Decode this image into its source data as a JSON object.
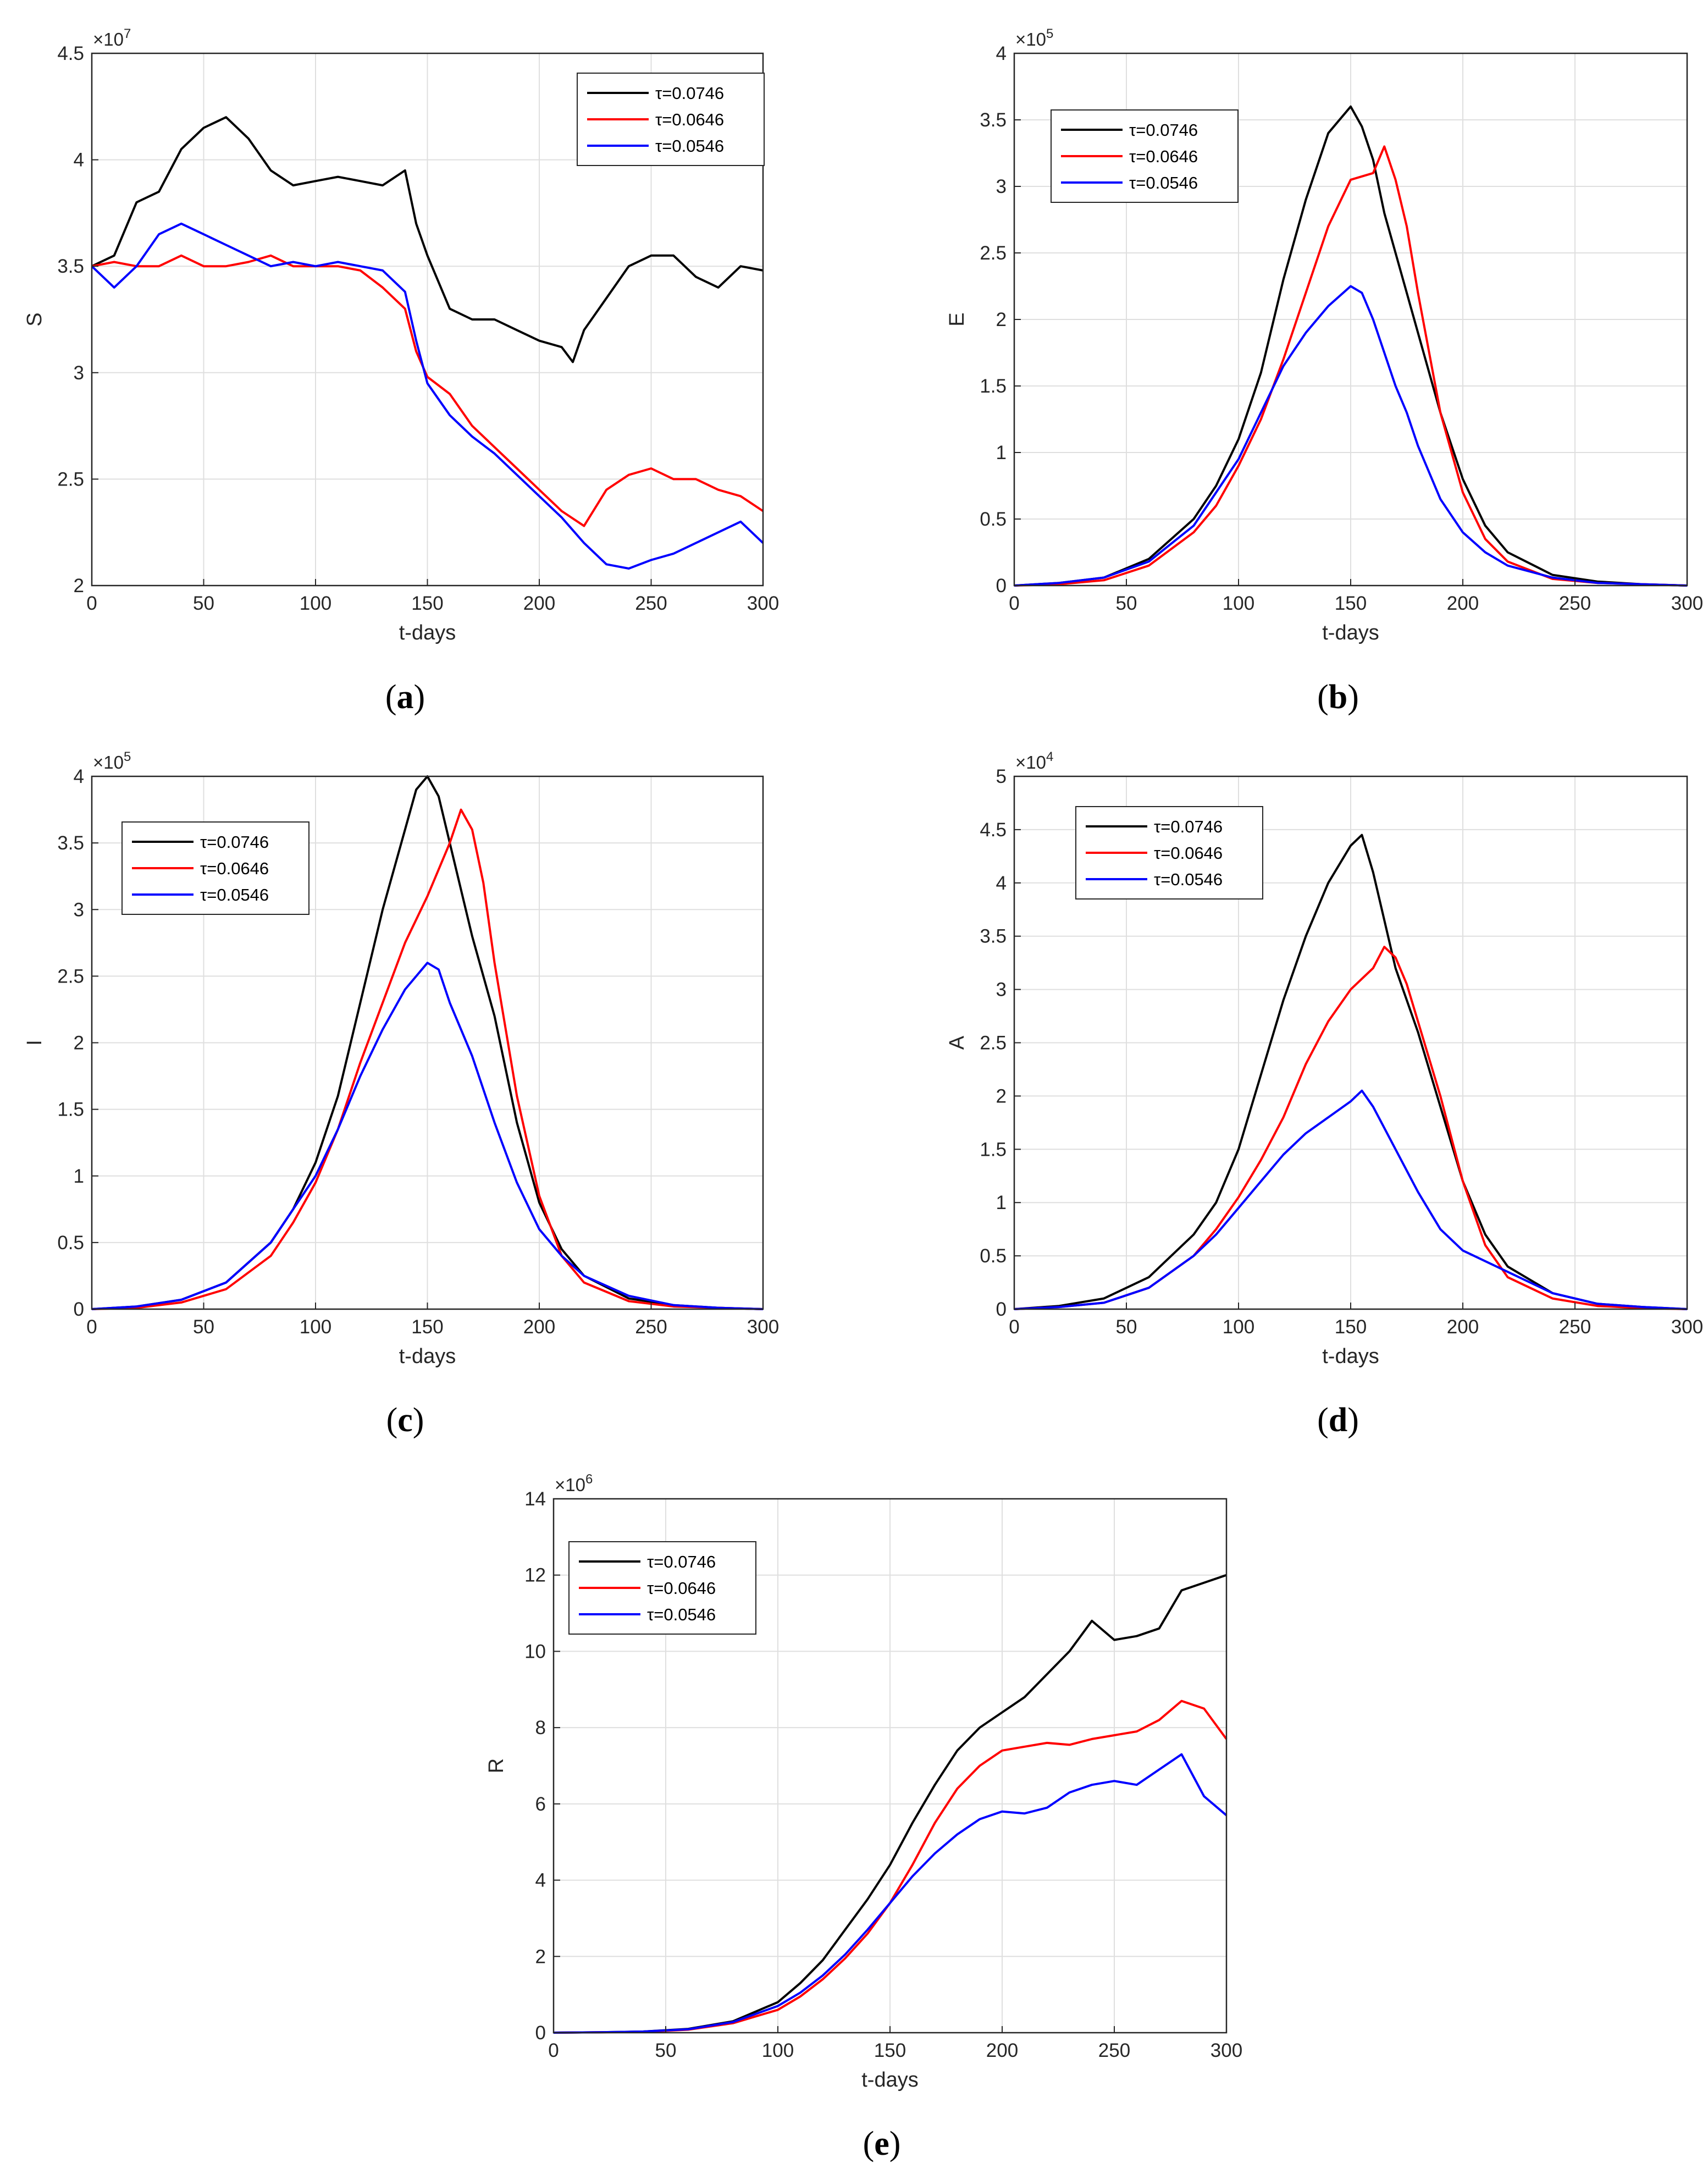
{
  "chart_data": [
    {
      "type": "line",
      "panel_label": "(a)",
      "panel_letter": "a",
      "ylabel": "S",
      "xlabel": "t-days",
      "exponent_base": "×10",
      "exponent_power": "7",
      "xlim": [
        0,
        300
      ],
      "xticks": [
        0,
        50,
        100,
        150,
        200,
        250,
        300
      ],
      "ylim": [
        2,
        4.5
      ],
      "yticks": [
        2,
        2.5,
        3,
        3.5,
        4,
        4.5
      ],
      "legend_position": "top-right",
      "grid": true,
      "series": [
        {
          "name": "τ=0.0746",
          "color": "#000000",
          "x": [
            0,
            10,
            20,
            30,
            40,
            50,
            60,
            70,
            80,
            90,
            100,
            110,
            120,
            130,
            140,
            145,
            150,
            160,
            170,
            180,
            190,
            200,
            210,
            215,
            220,
            230,
            240,
            250,
            260,
            270,
            280,
            290,
            300
          ],
          "values": [
            3.5,
            3.55,
            3.8,
            3.85,
            4.05,
            4.15,
            4.2,
            4.1,
            3.95,
            3.88,
            3.9,
            3.92,
            3.9,
            3.88,
            3.95,
            3.7,
            3.55,
            3.3,
            3.25,
            3.25,
            3.2,
            3.15,
            3.12,
            3.05,
            3.2,
            3.35,
            3.5,
            3.55,
            3.55,
            3.45,
            3.4,
            3.5,
            3.48
          ]
        },
        {
          "name": "τ=0.0646",
          "color": "#ff0000",
          "x": [
            0,
            10,
            20,
            30,
            40,
            50,
            60,
            70,
            80,
            90,
            100,
            110,
            120,
            130,
            140,
            145,
            150,
            160,
            170,
            180,
            190,
            200,
            210,
            220,
            230,
            240,
            250,
            260,
            270,
            280,
            290,
            300
          ],
          "values": [
            3.5,
            3.52,
            3.5,
            3.5,
            3.55,
            3.5,
            3.5,
            3.52,
            3.55,
            3.5,
            3.5,
            3.5,
            3.48,
            3.4,
            3.3,
            3.1,
            2.98,
            2.9,
            2.75,
            2.65,
            2.55,
            2.45,
            2.35,
            2.28,
            2.45,
            2.52,
            2.55,
            2.5,
            2.5,
            2.45,
            2.42,
            2.35
          ]
        },
        {
          "name": "τ=0.0546",
          "color": "#0000ff",
          "x": [
            0,
            10,
            20,
            30,
            40,
            50,
            60,
            70,
            80,
            90,
            100,
            110,
            120,
            130,
            140,
            145,
            150,
            160,
            170,
            180,
            190,
            200,
            210,
            220,
            230,
            240,
            250,
            260,
            270,
            280,
            290,
            300
          ],
          "values": [
            3.5,
            3.4,
            3.5,
            3.65,
            3.7,
            3.65,
            3.6,
            3.55,
            3.5,
            3.52,
            3.5,
            3.52,
            3.5,
            3.48,
            3.38,
            3.15,
            2.95,
            2.8,
            2.7,
            2.62,
            2.52,
            2.42,
            2.32,
            2.2,
            2.1,
            2.08,
            2.12,
            2.15,
            2.2,
            2.25,
            2.3,
            2.2
          ]
        }
      ]
    },
    {
      "type": "line",
      "panel_label": "(b)",
      "panel_letter": "b",
      "ylabel": "E",
      "xlabel": "t-days",
      "exponent_base": "×10",
      "exponent_power": "5",
      "xlim": [
        0,
        300
      ],
      "xticks": [
        0,
        50,
        100,
        150,
        200,
        250,
        300
      ],
      "ylim": [
        0,
        4
      ],
      "yticks": [
        0,
        0.5,
        1,
        1.5,
        2,
        2.5,
        3,
        3.5,
        4
      ],
      "legend_position": "top-left",
      "grid": true,
      "series": [
        {
          "name": "τ=0.0746",
          "color": "#000000",
          "x": [
            0,
            20,
            40,
            60,
            80,
            90,
            100,
            110,
            120,
            130,
            140,
            150,
            155,
            160,
            165,
            170,
            175,
            180,
            190,
            200,
            210,
            220,
            240,
            260,
            280,
            300
          ],
          "values": [
            0,
            0.02,
            0.06,
            0.2,
            0.5,
            0.75,
            1.1,
            1.6,
            2.3,
            2.9,
            3.4,
            3.6,
            3.45,
            3.2,
            2.8,
            2.5,
            2.2,
            1.9,
            1.3,
            0.8,
            0.45,
            0.25,
            0.08,
            0.03,
            0.01,
            0
          ]
        },
        {
          "name": "τ=0.0646",
          "color": "#ff0000",
          "x": [
            0,
            20,
            40,
            60,
            80,
            90,
            100,
            110,
            120,
            130,
            140,
            150,
            160,
            165,
            170,
            175,
            180,
            190,
            200,
            210,
            220,
            240,
            260,
            280,
            300
          ],
          "values": [
            0,
            0.01,
            0.04,
            0.15,
            0.4,
            0.6,
            0.9,
            1.25,
            1.7,
            2.2,
            2.7,
            3.05,
            3.1,
            3.3,
            3.05,
            2.7,
            2.2,
            1.3,
            0.7,
            0.35,
            0.18,
            0.05,
            0.02,
            0.01,
            0
          ]
        },
        {
          "name": "τ=0.0546",
          "color": "#0000ff",
          "x": [
            0,
            20,
            40,
            60,
            80,
            90,
            100,
            110,
            120,
            130,
            140,
            150,
            155,
            160,
            165,
            170,
            175,
            180,
            190,
            200,
            210,
            220,
            240,
            260,
            280,
            300
          ],
          "values": [
            0,
            0.02,
            0.06,
            0.18,
            0.45,
            0.7,
            0.95,
            1.3,
            1.65,
            1.9,
            2.1,
            2.25,
            2.2,
            2.0,
            1.75,
            1.5,
            1.3,
            1.05,
            0.65,
            0.4,
            0.25,
            0.15,
            0.06,
            0.02,
            0.01,
            0
          ]
        }
      ]
    },
    {
      "type": "line",
      "panel_label": "(c)",
      "panel_letter": "c",
      "ylabel": "I",
      "xlabel": "t-days",
      "exponent_base": "×10",
      "exponent_power": "5",
      "xlim": [
        0,
        300
      ],
      "xticks": [
        0,
        50,
        100,
        150,
        200,
        250,
        300
      ],
      "ylim": [
        0,
        4
      ],
      "yticks": [
        0,
        0.5,
        1,
        1.5,
        2,
        2.5,
        3,
        3.5,
        4
      ],
      "legend_position": "top-left",
      "grid": true,
      "series": [
        {
          "name": "τ=0.0746",
          "color": "#000000",
          "x": [
            0,
            20,
            40,
            60,
            80,
            90,
            100,
            110,
            120,
            130,
            140,
            145,
            150,
            155,
            160,
            170,
            180,
            190,
            200,
            210,
            220,
            240,
            260,
            280,
            300
          ],
          "values": [
            0,
            0.02,
            0.07,
            0.2,
            0.5,
            0.75,
            1.1,
            1.6,
            2.3,
            3.0,
            3.6,
            3.9,
            4.0,
            3.85,
            3.5,
            2.8,
            2.2,
            1.4,
            0.8,
            0.45,
            0.25,
            0.08,
            0.03,
            0.01,
            0
          ]
        },
        {
          "name": "τ=0.0646",
          "color": "#ff0000",
          "x": [
            0,
            20,
            40,
            60,
            80,
            90,
            100,
            110,
            120,
            130,
            140,
            150,
            160,
            165,
            170,
            175,
            180,
            190,
            200,
            210,
            220,
            240,
            260,
            280,
            300
          ],
          "values": [
            0,
            0.01,
            0.05,
            0.15,
            0.4,
            0.65,
            0.95,
            1.35,
            1.85,
            2.3,
            2.75,
            3.1,
            3.5,
            3.75,
            3.6,
            3.2,
            2.6,
            1.6,
            0.85,
            0.4,
            0.2,
            0.06,
            0.02,
            0.01,
            0
          ]
        },
        {
          "name": "τ=0.0546",
          "color": "#0000ff",
          "x": [
            0,
            20,
            40,
            60,
            80,
            90,
            100,
            110,
            120,
            130,
            140,
            150,
            155,
            160,
            165,
            170,
            180,
            190,
            200,
            210,
            220,
            240,
            260,
            280,
            300
          ],
          "values": [
            0,
            0.02,
            0.07,
            0.2,
            0.5,
            0.75,
            1.0,
            1.35,
            1.75,
            2.1,
            2.4,
            2.6,
            2.55,
            2.3,
            2.1,
            1.9,
            1.4,
            0.95,
            0.6,
            0.4,
            0.25,
            0.1,
            0.03,
            0.01,
            0
          ]
        }
      ]
    },
    {
      "type": "line",
      "panel_label": "(d)",
      "panel_letter": "d",
      "ylabel": "A",
      "xlabel": "t-days",
      "exponent_base": "×10",
      "exponent_power": "4",
      "xlim": [
        0,
        300
      ],
      "xticks": [
        0,
        50,
        100,
        150,
        200,
        250,
        300
      ],
      "ylim": [
        0,
        5
      ],
      "yticks": [
        0,
        0.5,
        1,
        1.5,
        2,
        2.5,
        3,
        3.5,
        4,
        4.5,
        5
      ],
      "legend_position": "top-left",
      "grid": true,
      "series": [
        {
          "name": "τ=0.0746",
          "color": "#000000",
          "x": [
            0,
            20,
            40,
            60,
            80,
            90,
            100,
            110,
            120,
            130,
            140,
            150,
            155,
            160,
            170,
            180,
            190,
            200,
            210,
            220,
            240,
            260,
            280,
            300
          ],
          "values": [
            0,
            0.03,
            0.1,
            0.3,
            0.7,
            1.0,
            1.5,
            2.2,
            2.9,
            3.5,
            4.0,
            4.35,
            4.45,
            4.1,
            3.2,
            2.6,
            1.9,
            1.2,
            0.7,
            0.4,
            0.15,
            0.05,
            0.02,
            0
          ]
        },
        {
          "name": "τ=0.0646",
          "color": "#ff0000",
          "x": [
            0,
            20,
            40,
            60,
            80,
            90,
            100,
            110,
            120,
            130,
            140,
            150,
            160,
            165,
            170,
            175,
            180,
            190,
            200,
            210,
            220,
            240,
            260,
            280,
            300
          ],
          "values": [
            0,
            0.02,
            0.06,
            0.2,
            0.5,
            0.75,
            1.05,
            1.4,
            1.8,
            2.3,
            2.7,
            3.0,
            3.2,
            3.4,
            3.3,
            3.05,
            2.7,
            2.0,
            1.2,
            0.6,
            0.3,
            0.1,
            0.03,
            0.01,
            0
          ]
        },
        {
          "name": "τ=0.0546",
          "color": "#0000ff",
          "x": [
            0,
            20,
            40,
            60,
            80,
            90,
            100,
            110,
            120,
            130,
            140,
            150,
            155,
            160,
            170,
            180,
            190,
            200,
            210,
            220,
            240,
            260,
            280,
            300
          ],
          "values": [
            0,
            0.02,
            0.06,
            0.2,
            0.5,
            0.7,
            0.95,
            1.2,
            1.45,
            1.65,
            1.8,
            1.95,
            2.05,
            1.9,
            1.5,
            1.1,
            0.75,
            0.55,
            0.45,
            0.35,
            0.15,
            0.05,
            0.02,
            0
          ]
        }
      ]
    },
    {
      "type": "line",
      "panel_label": "(e)",
      "panel_letter": "e",
      "ylabel": "R",
      "xlabel": "t-days",
      "exponent_base": "×10",
      "exponent_power": "6",
      "xlim": [
        0,
        300
      ],
      "xticks": [
        0,
        50,
        100,
        150,
        200,
        250,
        300
      ],
      "ylim": [
        0,
        14
      ],
      "yticks": [
        0,
        2,
        4,
        6,
        8,
        10,
        12,
        14
      ],
      "legend_position": "top-left",
      "grid": true,
      "series": [
        {
          "name": "τ=0.0746",
          "color": "#000000",
          "x": [
            0,
            20,
            40,
            60,
            80,
            100,
            110,
            120,
            130,
            140,
            150,
            160,
            170,
            180,
            190,
            200,
            210,
            220,
            230,
            240,
            250,
            260,
            270,
            280,
            290,
            300
          ],
          "values": [
            0,
            0.01,
            0.03,
            0.1,
            0.3,
            0.8,
            1.3,
            1.9,
            2.7,
            3.5,
            4.4,
            5.5,
            6.5,
            7.4,
            8.0,
            8.4,
            8.8,
            9.4,
            10.0,
            10.8,
            10.3,
            10.4,
            10.6,
            11.6,
            11.8,
            12.0
          ]
        },
        {
          "name": "τ=0.0646",
          "color": "#ff0000",
          "x": [
            0,
            20,
            40,
            60,
            80,
            100,
            110,
            120,
            130,
            140,
            150,
            160,
            170,
            180,
            190,
            200,
            210,
            220,
            230,
            240,
            250,
            260,
            270,
            280,
            290,
            300
          ],
          "values": [
            0,
            0.01,
            0.02,
            0.08,
            0.25,
            0.6,
            0.95,
            1.4,
            1.95,
            2.6,
            3.4,
            4.4,
            5.5,
            6.4,
            7.0,
            7.4,
            7.5,
            7.6,
            7.55,
            7.7,
            7.8,
            7.9,
            8.2,
            8.7,
            8.5,
            7.7
          ]
        },
        {
          "name": "τ=0.0546",
          "color": "#0000ff",
          "x": [
            0,
            20,
            40,
            60,
            80,
            100,
            110,
            120,
            130,
            140,
            150,
            160,
            170,
            180,
            190,
            200,
            210,
            220,
            230,
            240,
            250,
            260,
            270,
            280,
            290,
            300
          ],
          "values": [
            0,
            0.01,
            0.03,
            0.09,
            0.28,
            0.7,
            1.05,
            1.5,
            2.05,
            2.7,
            3.4,
            4.1,
            4.7,
            5.2,
            5.6,
            5.8,
            5.75,
            5.9,
            6.3,
            6.5,
            6.6,
            6.5,
            6.9,
            7.3,
            6.2,
            5.7
          ]
        }
      ]
    }
  ]
}
